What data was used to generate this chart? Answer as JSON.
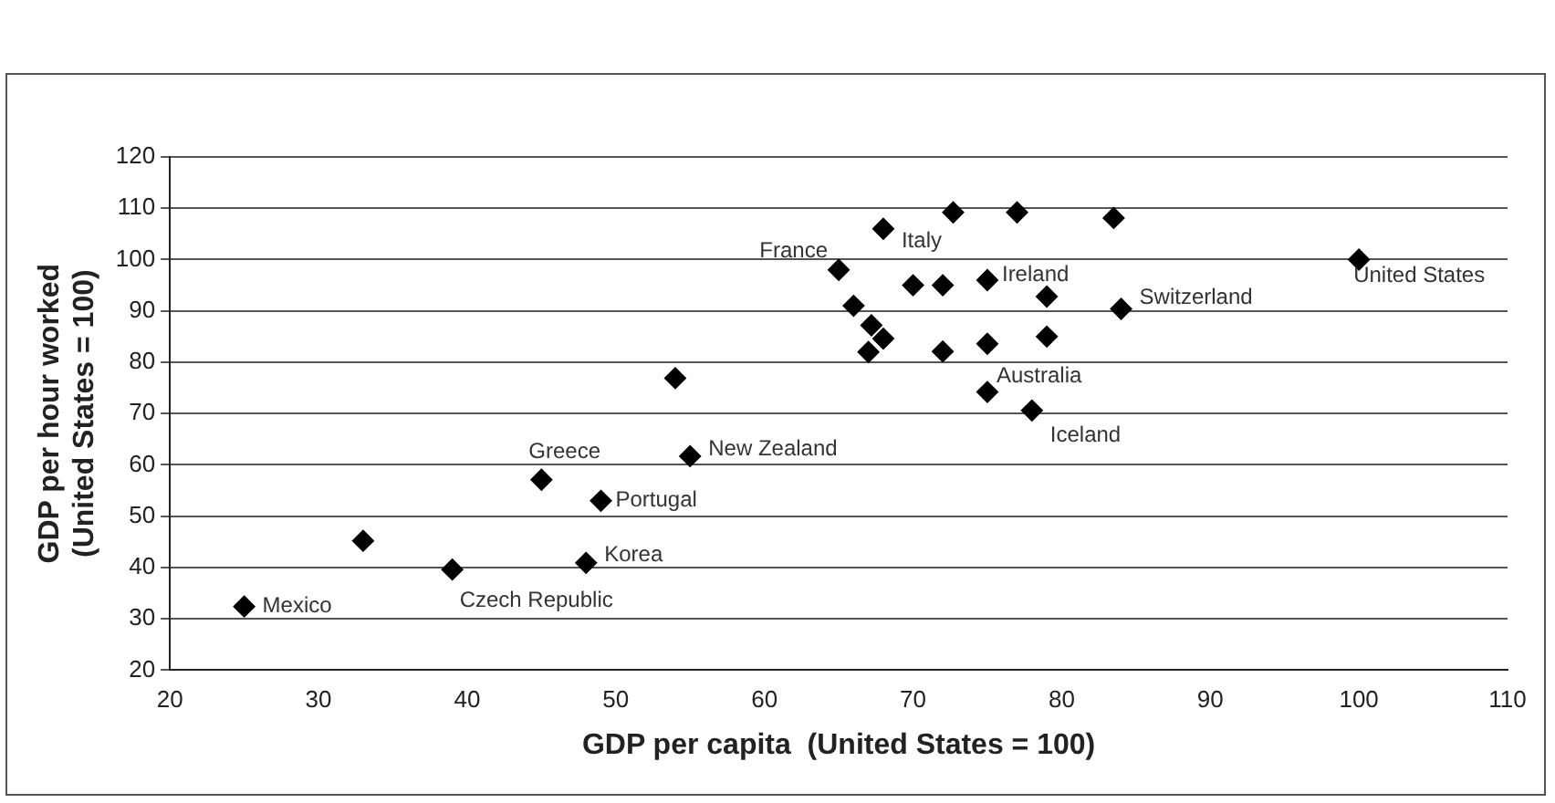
{
  "chart_data": {
    "type": "scatter",
    "xlabel": "GDP per capita  (United States = 100)",
    "ylabel": "GDP per hour worked\n(United States = 100)",
    "series": [
      {
        "color": "#000000",
        "x": [
          25,
          33,
          39,
          48,
          45,
          49,
          55,
          54,
          65,
          66,
          68,
          72.7,
          77,
          83.5,
          67.2,
          67,
          68,
          70,
          72,
          75,
          79,
          84,
          100,
          72,
          75,
          79,
          75,
          78
        ],
        "values": [
          32.4,
          45.2,
          39.6,
          40.9,
          57.1,
          53,
          61.7,
          76.9,
          98,
          91,
          106,
          109.2,
          109.2,
          108.1,
          87.2,
          82,
          84.6,
          95,
          95,
          96,
          92.8,
          90.4,
          100,
          82.1,
          83.6,
          85,
          74.2,
          70.6
        ]
      }
    ],
    "xlim": [
      20,
      110
    ],
    "xticks": [
      20,
      30,
      40,
      50,
      60,
      70,
      80,
      90,
      100,
      110
    ],
    "ylim": [
      20,
      120
    ],
    "yticks": [
      20,
      30,
      40,
      50,
      60,
      70,
      80,
      90,
      100,
      110,
      120
    ],
    "grid": "y",
    "legend": false,
    "marker": "diamond",
    "annotations": [
      {
        "text": "Mexico",
        "x": 25,
        "y": 32.4
      },
      {
        "text": "Czech Republic",
        "x": 39,
        "y": 39.6
      },
      {
        "text": "Korea",
        "x": 48,
        "y": 40.9
      },
      {
        "text": "Greece",
        "x": 45,
        "y": 57.1
      },
      {
        "text": "Portugal",
        "x": 49,
        "y": 53
      },
      {
        "text": "New Zealand",
        "x": 55,
        "y": 61.7
      },
      {
        "text": "France",
        "x": 65,
        "y": 98
      },
      {
        "text": "Italy",
        "x": 68,
        "y": 106
      },
      {
        "text": "Ireland",
        "x": 75,
        "y": 96
      },
      {
        "text": "Switzerland",
        "x": 84,
        "y": 90.4
      },
      {
        "text": "United States",
        "x": 100,
        "y": 100
      },
      {
        "text": "Australia",
        "x": 75,
        "y": 83.6
      },
      {
        "text": "Iceland",
        "x": 78,
        "y": 70.6
      }
    ]
  }
}
